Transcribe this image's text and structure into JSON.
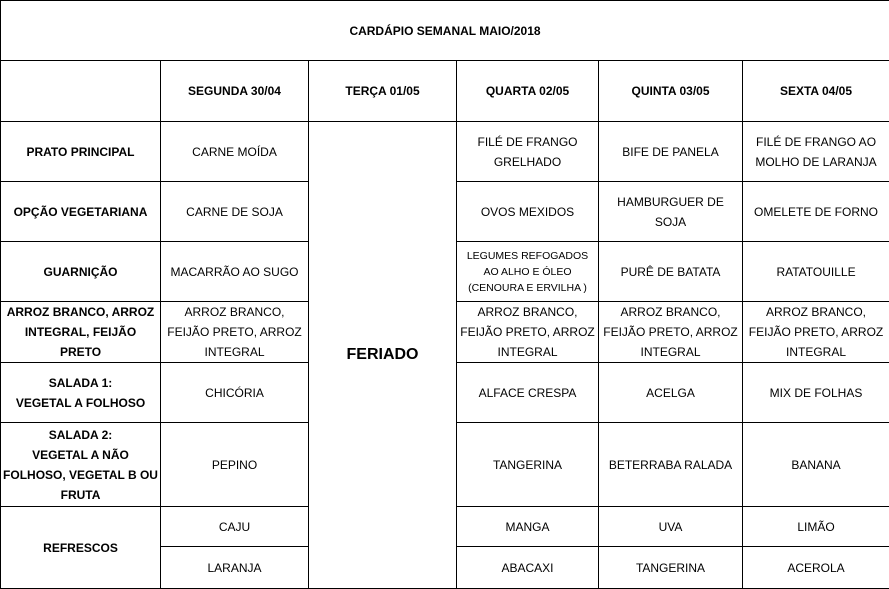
{
  "title": "CARDÁPIO SEMANAL MAIO/2018",
  "days": [
    "SEGUNDA   30/04",
    "TERÇA 01/05",
    "QUARTA 02/05",
    "QUINTA 03/05",
    "SEXTA 04/05"
  ],
  "holiday_label": "FERIADO",
  "rows": [
    {
      "label": "PRATO PRINCIPAL",
      "values": [
        "CARNE MOÍDA",
        "FILÉ DE FRANGO GRELHADO",
        "BIFE DE PANELA",
        "FILÉ DE FRANGO AO MOLHO DE LARANJA"
      ]
    },
    {
      "label": "OPÇÃO VEGETARIANA",
      "values": [
        "CARNE DE SOJA",
        "OVOS MEXIDOS",
        "HAMBURGUER DE SOJA",
        "OMELETE DE FORNO"
      ]
    },
    {
      "label": "GUARNIÇÃO",
      "values": [
        "MACARRÃO AO SUGO",
        "LEGUMES REFOGADOS\nAO ALHO E ÓLEO\n(CENOURA E ERVILHA )",
        "PURÊ DE BATATA",
        "RATATOUILLE"
      ]
    },
    {
      "label": "ARROZ BRANCO, ARROZ INTEGRAL, FEIJÃO PRETO",
      "values": [
        "ARROZ BRANCO, FEIJÃO PRETO, ARROZ INTEGRAL",
        "ARROZ BRANCO, FEIJÃO PRETO, ARROZ INTEGRAL",
        "ARROZ BRANCO, FEIJÃO PRETO, ARROZ INTEGRAL",
        "ARROZ BRANCO, FEIJÃO PRETO, ARROZ INTEGRAL"
      ]
    },
    {
      "label": "SALADA 1:\nVEGETAL A FOLHOSO",
      "values": [
        "CHICÓRIA",
        "ALFACE CRESPA",
        "ACELGA",
        "MIX DE FOLHAS"
      ]
    },
    {
      "label": "SALADA 2:\nVEGETAL A NÃO FOLHOSO, VEGETAL B OU FRUTA",
      "values": [
        "PEPINO",
        "TANGERINA",
        "BETERRABA RALADA",
        "BANANA"
      ]
    }
  ],
  "refrescos": {
    "label": "REFRESCOS",
    "rows": [
      [
        "CAJU",
        "MANGA",
        "UVA",
        "LIMÃO"
      ],
      [
        "LARANJA",
        "ABACAXI",
        "TANGERINA",
        "ACEROLA"
      ]
    ]
  }
}
